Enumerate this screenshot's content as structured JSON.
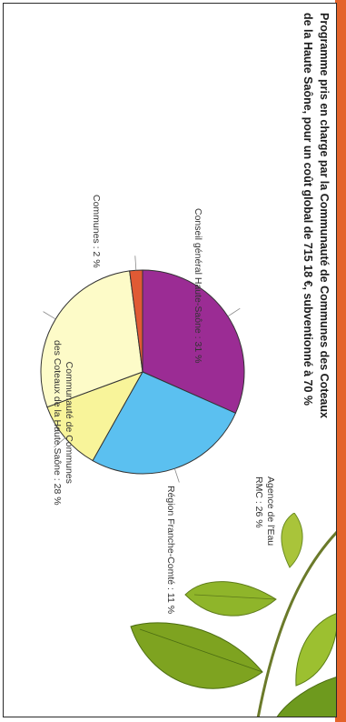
{
  "title": {
    "line1": "Programme pris en charge par la Communauté de Communes des Coteaux",
    "line2": "de la Haute Saône, pour un coût global de 715 18 €, subventionné à 70 %"
  },
  "colors": {
    "accent": "#e4632a",
    "border": "#2a2a2a"
  },
  "chart_data": {
    "type": "pie",
    "title": "",
    "slices": [
      {
        "label": "Conseil général de la Haute-Saône",
        "value": 31,
        "color": "#9b2c94",
        "display": "Conseil général Haute-Saône : 31 %"
      },
      {
        "label": "Agence de l'Eau RMC",
        "value": 26,
        "color": "#5bc0f0",
        "display_lines": [
          "Agence de l'Eau",
          "RMC : 26 %"
        ]
      },
      {
        "label": "Région Franche-Comté",
        "value": 11,
        "color": "#f8f49a",
        "display": "Région Franche-Comté : 11 %"
      },
      {
        "label": "Communauté de Communes des Coteaux de la Haute Saône",
        "value": 28,
        "color": "#fdfbc8",
        "display_lines": [
          "Communauté de Communes",
          "des Coteaux de la Haute Saône : 28 %"
        ]
      },
      {
        "label": "Communes",
        "value": 2,
        "color": "#e05a34",
        "display": "Communes : 2 %"
      }
    ]
  },
  "leaves": {
    "icon": "leaf-branch-icon"
  }
}
